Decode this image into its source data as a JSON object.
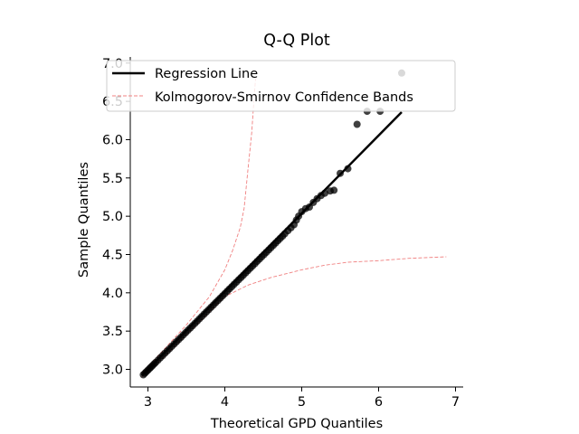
{
  "chart_data": {
    "type": "scatter",
    "title": "Q-Q Plot",
    "xlabel": "Theoretical GPD Quantiles",
    "ylabel": "Sample Quantiles",
    "xlim": [
      2.77,
      7.1
    ],
    "ylim": [
      2.77,
      7.08
    ],
    "xticks": [
      3,
      4,
      5,
      6,
      7
    ],
    "xtick_labels": [
      "3",
      "4",
      "5",
      "6",
      "7"
    ],
    "yticks": [
      3.0,
      3.5,
      4.0,
      4.5,
      5.0,
      5.5,
      6.0,
      6.5,
      7.0
    ],
    "ytick_labels": [
      "3.0",
      "3.5",
      "4.0",
      "4.5",
      "5.0",
      "5.5",
      "6.0",
      "6.5",
      "7.0"
    ],
    "grid": false,
    "legend_position": "top-left",
    "colors": {
      "points": "#000000",
      "regression": "#000000",
      "bands": "#f08080"
    },
    "series": [
      {
        "name": "Regression Line",
        "kind": "line",
        "x": [
          2.92,
          6.3
        ],
        "y": [
          2.92,
          6.36
        ]
      },
      {
        "name": "Kolmogorov-Smirnov Confidence Bands",
        "kind": "upper-band",
        "x": [
          2.92,
          3.2,
          3.5,
          3.8,
          4.0,
          4.1,
          4.2,
          4.25,
          4.27,
          4.3,
          4.33,
          4.35,
          4.37,
          4.4
        ],
        "y": [
          2.95,
          3.25,
          3.58,
          3.95,
          4.3,
          4.55,
          4.85,
          5.1,
          5.3,
          5.6,
          5.9,
          6.1,
          6.4,
          6.8
        ]
      },
      {
        "name": "Kolmogorov-Smirnov Confidence Bands",
        "kind": "lower-band",
        "x": [
          2.92,
          3.2,
          3.5,
          3.8,
          4.0,
          4.3,
          4.6,
          4.8,
          5.0,
          5.3,
          5.6,
          6.0,
          6.4,
          6.88
        ],
        "y": [
          2.9,
          3.15,
          3.45,
          3.75,
          3.95,
          4.1,
          4.2,
          4.25,
          4.3,
          4.36,
          4.4,
          4.42,
          4.45,
          4.47
        ]
      },
      {
        "kind": "points",
        "x": [
          2.94,
          2.96,
          2.98,
          3.0,
          3.02,
          3.04,
          3.06,
          3.08,
          3.1,
          3.13,
          3.16,
          3.19,
          3.22,
          3.25,
          3.28,
          3.31,
          3.34,
          3.37,
          3.4,
          3.43,
          3.46,
          3.49,
          3.52,
          3.55,
          3.58,
          3.61,
          3.64,
          3.67,
          3.7,
          3.73,
          3.76,
          3.79,
          3.82,
          3.85,
          3.88,
          3.91,
          3.94,
          3.97,
          4.0,
          4.03,
          4.06,
          4.09,
          4.12,
          4.15,
          4.18,
          4.21,
          4.24,
          4.27,
          4.3,
          4.33,
          4.36,
          4.39,
          4.42,
          4.45,
          4.48,
          4.51,
          4.54,
          4.57,
          4.6,
          4.63,
          4.66,
          4.69,
          4.72,
          4.75,
          4.78,
          4.82,
          4.86,
          4.9,
          4.93,
          4.96,
          5.0,
          5.05,
          5.1,
          5.15,
          5.2,
          5.25,
          5.3,
          5.37,
          5.42,
          5.5,
          5.6,
          5.72,
          5.85,
          6.02,
          6.3
        ],
        "y": [
          2.93,
          2.95,
          2.97,
          2.99,
          3.01,
          3.03,
          3.05,
          3.07,
          3.09,
          3.12,
          3.15,
          3.18,
          3.21,
          3.24,
          3.27,
          3.3,
          3.33,
          3.36,
          3.39,
          3.42,
          3.45,
          3.48,
          3.51,
          3.54,
          3.57,
          3.6,
          3.63,
          3.66,
          3.69,
          3.72,
          3.75,
          3.78,
          3.81,
          3.84,
          3.87,
          3.9,
          3.93,
          3.96,
          3.99,
          4.02,
          4.05,
          4.08,
          4.11,
          4.14,
          4.17,
          4.2,
          4.23,
          4.26,
          4.29,
          4.32,
          4.35,
          4.38,
          4.41,
          4.44,
          4.47,
          4.5,
          4.53,
          4.56,
          4.59,
          4.62,
          4.65,
          4.68,
          4.71,
          4.74,
          4.77,
          4.81,
          4.85,
          4.89,
          4.95,
          5.0,
          5.06,
          5.1,
          5.12,
          5.18,
          5.23,
          5.27,
          5.3,
          5.33,
          5.34,
          5.56,
          5.62,
          6.2,
          6.37,
          6.37,
          6.87
        ]
      }
    ]
  }
}
